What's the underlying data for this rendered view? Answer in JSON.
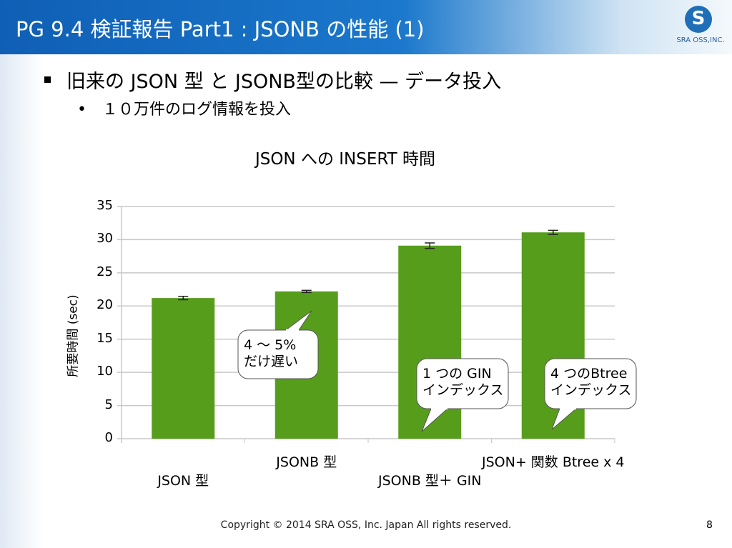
{
  "header": {
    "title": "PG 9.4 検証報告 Part1 : JSONB の性能 (1)",
    "logo_text": "SRA OSS,INC."
  },
  "bullets": {
    "main": "旧来の JSON 型 と JSONB型の比較 — データ投入",
    "sub": "１０万件のログ情報を投入"
  },
  "chart_data": {
    "type": "bar",
    "title": "JSON への INSERT 時間",
    "xlabel": "",
    "ylabel": "所要時間 (sec)",
    "ylim": [
      0,
      35
    ],
    "yticks": [
      0,
      5,
      10,
      15,
      20,
      25,
      30,
      35
    ],
    "grid": true,
    "categories": [
      "JSON 型",
      "JSONB 型",
      "JSONB 型＋ GIN",
      "JSON+ 関数 Btree x 4"
    ],
    "values": [
      21.2,
      22.2,
      29.1,
      31.1
    ],
    "error": [
      0.15,
      0.05,
      0.3,
      0.2
    ],
    "color": "#579d1c",
    "annotations": [
      {
        "text": [
          "4 ～ 5%",
          "だけ遅い"
        ],
        "target": "JSONB 型"
      },
      {
        "text": [
          "1 つの GIN",
          "インデックス"
        ],
        "target": "JSONB 型＋ GIN"
      },
      {
        "text": [
          "4 つのBtree",
          "インデックス"
        ],
        "target": "JSON+ 関数 Btree x 4"
      }
    ]
  },
  "footer": {
    "copyright": "Copyright © 2014 SRA OSS, Inc. Japan All rights reserved.",
    "page": "8"
  }
}
